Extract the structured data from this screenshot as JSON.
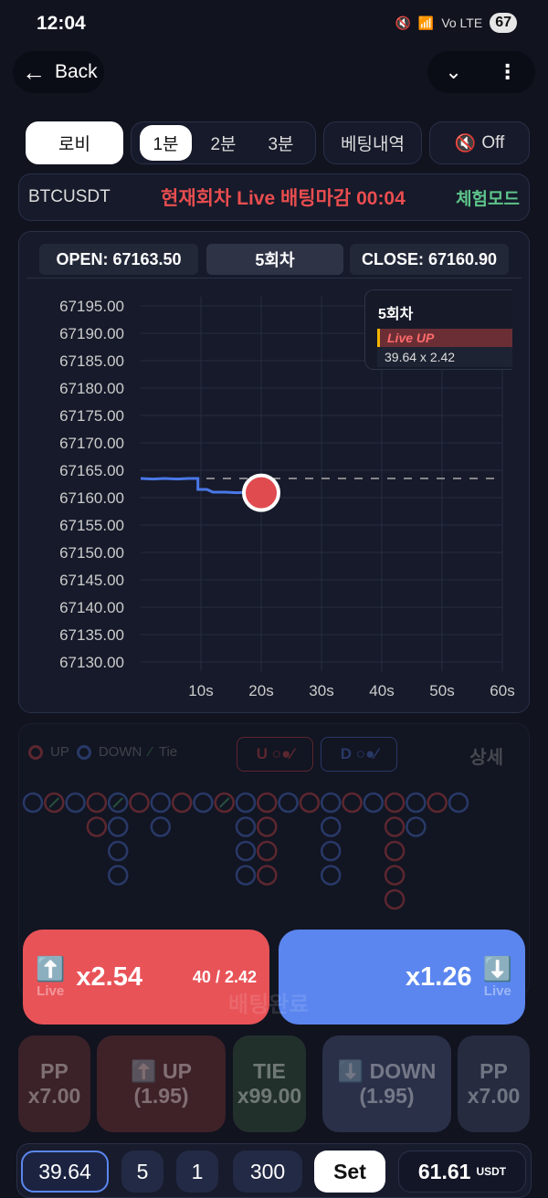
{
  "status_bar": {
    "time": "12:04",
    "battery": "67",
    "net": "Vo LTE"
  },
  "nav": {
    "back_label": "Back"
  },
  "tabs": {
    "lobby": "로비",
    "intervals": [
      "1분",
      "2분",
      "3분"
    ],
    "history": "베팅내역",
    "sound": "Off"
  },
  "ticker": {
    "symbol": "BTCUSDT",
    "status": "현재회차 Live 배팅마감 00:04",
    "mode": "체험모드"
  },
  "chart_header": {
    "open": "OPEN: 67163.50",
    "round": "5회차",
    "close": "CLOSE: 67160.90"
  },
  "tooltip": {
    "round": "5회차",
    "bet": "Live UP",
    "amount": "39.64 x 2.42"
  },
  "chart_data": {
    "type": "line",
    "x_unit": "s",
    "xlim": [
      0,
      60
    ],
    "ylim": [
      67130,
      67195
    ],
    "y_ticks": [
      "67195.00",
      "67190.00",
      "67185.00",
      "67180.00",
      "67175.00",
      "67170.00",
      "67165.00",
      "67160.00",
      "67155.00",
      "67150.00",
      "67145.00",
      "67140.00",
      "67135.00",
      "67130.00"
    ],
    "x_ticks": [
      "10s",
      "20s",
      "30s",
      "40s",
      "50s",
      "60s"
    ],
    "open_line": 67163.5,
    "series": [
      {
        "x": [
          0,
          2,
          4,
          6,
          8,
          9.5,
          9.5,
          11,
          12,
          14,
          16,
          18,
          20
        ],
        "y": [
          67163.5,
          67163.4,
          67163.5,
          67163.4,
          67163.5,
          67163.5,
          67161.5,
          67161.5,
          67161,
          67161,
          67160.9,
          67161,
          67160.9
        ]
      }
    ],
    "current": {
      "x": 20,
      "y": 67160.9
    },
    "grid": true
  },
  "road": {
    "legend": [
      "UP",
      "DOWN",
      "Tie"
    ],
    "u_label": "U",
    "d_label": "D",
    "detail": "상세",
    "columns": [
      [
        "D"
      ],
      [
        "UT"
      ],
      [
        "D"
      ],
      [
        "U",
        "U"
      ],
      [
        "DT",
        "D",
        "D",
        "D"
      ],
      [
        "U"
      ],
      [
        "D",
        "D"
      ],
      [
        "U"
      ],
      [
        "D"
      ],
      [
        "UT"
      ],
      [
        "D",
        "D",
        "D",
        "D"
      ],
      [
        "U",
        "U",
        "U",
        "U"
      ],
      [
        "D"
      ],
      [
        "U"
      ],
      [
        "D",
        "D",
        "D",
        "D"
      ],
      [
        "U"
      ],
      [
        "D"
      ],
      [
        "U",
        "U",
        "U",
        "U",
        "U"
      ],
      [
        "D",
        "D"
      ],
      [
        "U"
      ],
      [
        "D"
      ]
    ]
  },
  "bet": {
    "up_mult": "x2.54",
    "up_pool": "40",
    "up_pool_rate": "2.42",
    "down_mult": "x1.26",
    "live": "Live",
    "done": "배팅완료"
  },
  "options": [
    {
      "l1": "PP",
      "l2": "x7.00",
      "c": "#3a2228"
    },
    {
      "l1": "⬆️ UP",
      "l2": "(1.95)",
      "c": "#3e2228"
    },
    {
      "l1": "TIE",
      "l2": "x99.00",
      "c": "#22302c"
    },
    {
      "l1": "⬇️ DOWN",
      "l2": "(1.95)",
      "c": "#2a3048"
    },
    {
      "l1": "PP",
      "l2": "x7.00",
      "c": "#262b40"
    }
  ],
  "amount": {
    "value": "39.64",
    "chips": [
      "5",
      "1",
      "300"
    ],
    "set": "Set",
    "balance": "61.61",
    "currency": "USDT"
  },
  "colors": {
    "up": "#e84d4f",
    "down": "#5580ee",
    "tie": "#4fbf7a",
    "mode": "#5dc38a"
  }
}
